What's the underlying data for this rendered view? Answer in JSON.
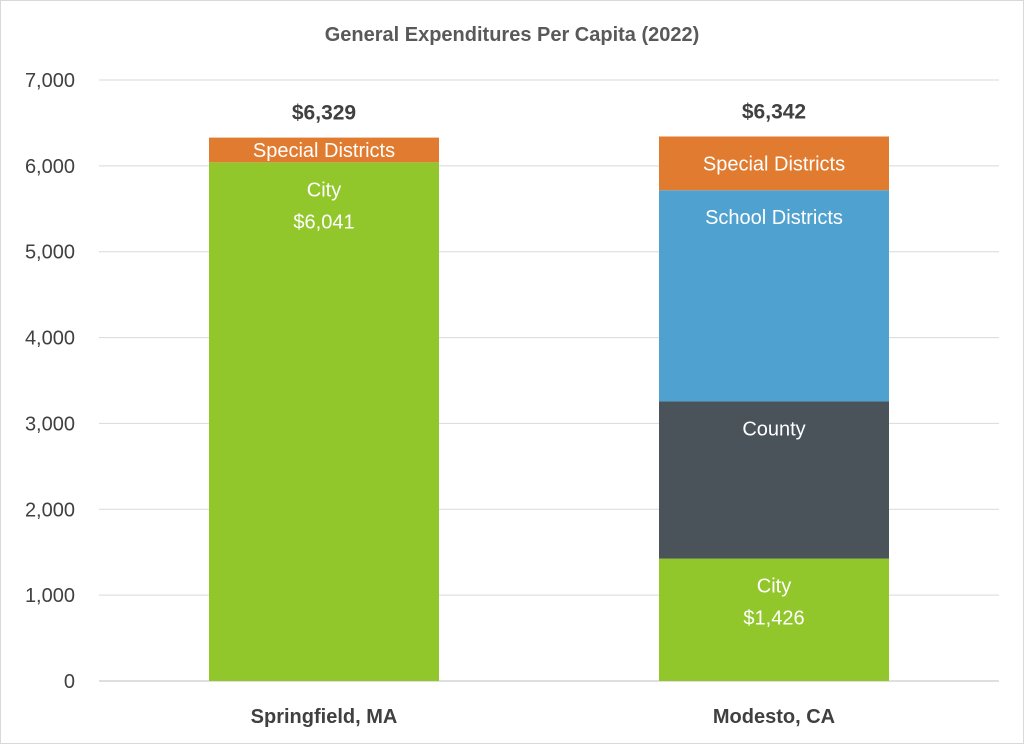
{
  "chart_data": {
    "type": "bar",
    "stacked": true,
    "title": "General Expenditures Per Capita (2022)",
    "categories": [
      "Springfield, MA",
      "Modesto, CA"
    ],
    "ylim": [
      0,
      7000
    ],
    "yticks": [
      "0",
      "1,000",
      "2,000",
      "3,000",
      "4,000",
      "5,000",
      "6,000",
      "7,000"
    ],
    "ytick_values": [
      0,
      1000,
      2000,
      3000,
      4000,
      5000,
      6000,
      7000
    ],
    "grid": true,
    "totals": [
      "$6,329",
      "$6,342"
    ],
    "total_values": [
      6329,
      6342
    ],
    "bars": [
      {
        "category": "Springfield, MA",
        "segments": [
          {
            "label": "City",
            "value": 6041,
            "value_label": "$6,041",
            "color": "#92c72b"
          },
          {
            "label": "Special Districts",
            "value": 288,
            "value_label": "",
            "color": "#e07b2f"
          }
        ]
      },
      {
        "category": "Modesto, CA",
        "segments": [
          {
            "label": "City",
            "value": 1426,
            "value_label": "$1,426",
            "color": "#92c72b"
          },
          {
            "label": "County",
            "value": 1830,
            "value_label": "",
            "color": "#4a525a"
          },
          {
            "label": "School Districts",
            "value": 2460,
            "value_label": "",
            "color": "#4fa1cf"
          },
          {
            "label": "Special Districts",
            "value": 626,
            "value_label": "",
            "color": "#e07b2f"
          }
        ]
      }
    ]
  }
}
